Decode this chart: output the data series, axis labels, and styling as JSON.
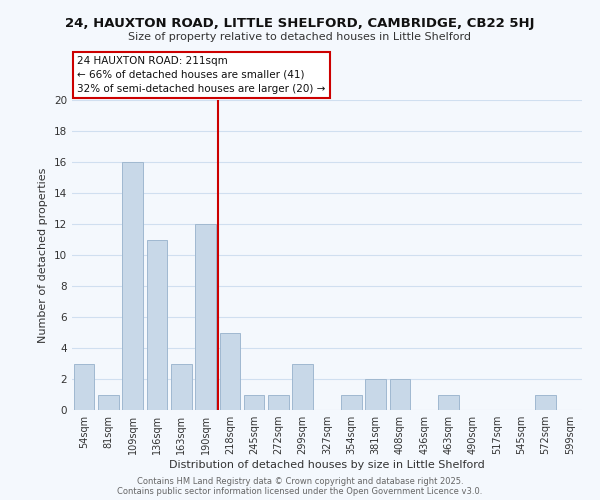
{
  "title": "24, HAUXTON ROAD, LITTLE SHELFORD, CAMBRIDGE, CB22 5HJ",
  "subtitle": "Size of property relative to detached houses in Little Shelford",
  "xlabel": "Distribution of detached houses by size in Little Shelford",
  "ylabel": "Number of detached properties",
  "bar_labels": [
    "54sqm",
    "81sqm",
    "109sqm",
    "136sqm",
    "163sqm",
    "190sqm",
    "218sqm",
    "245sqm",
    "272sqm",
    "299sqm",
    "327sqm",
    "354sqm",
    "381sqm",
    "408sqm",
    "436sqm",
    "463sqm",
    "490sqm",
    "517sqm",
    "545sqm",
    "572sqm",
    "599sqm"
  ],
  "bar_values": [
    3,
    1,
    16,
    11,
    3,
    12,
    5,
    1,
    1,
    3,
    0,
    1,
    2,
    2,
    0,
    1,
    0,
    0,
    0,
    1,
    0
  ],
  "bar_color": "#c8d8e8",
  "bar_edge_color": "#a0b8d0",
  "vline_index": 6,
  "vline_color": "#cc0000",
  "ylim": [
    0,
    20
  ],
  "yticks": [
    0,
    2,
    4,
    6,
    8,
    10,
    12,
    14,
    16,
    18,
    20
  ],
  "annotation_title": "24 HAUXTON ROAD: 211sqm",
  "annotation_line1": "← 66% of detached houses are smaller (41)",
  "annotation_line2": "32% of semi-detached houses are larger (20) →",
  "grid_color": "#d0dff0",
  "bg_color": "#f4f8fd",
  "footer1": "Contains HM Land Registry data © Crown copyright and database right 2025.",
  "footer2": "Contains public sector information licensed under the Open Government Licence v3.0."
}
